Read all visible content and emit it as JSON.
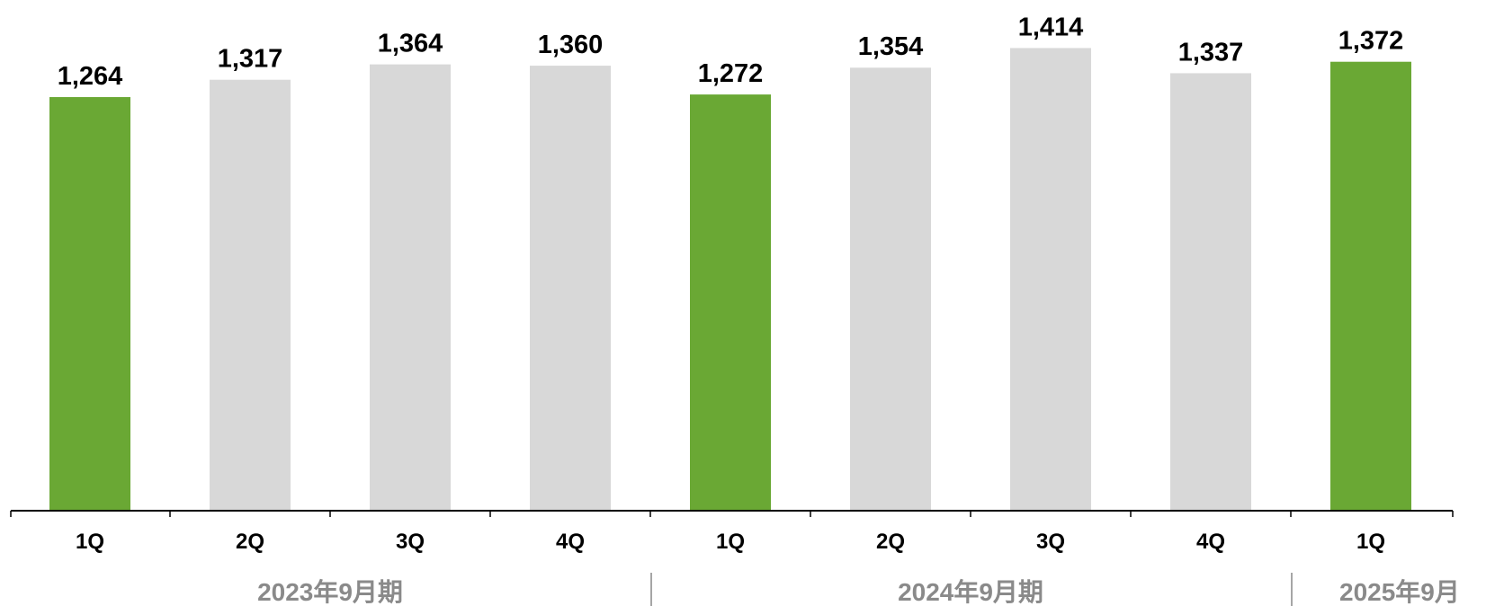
{
  "chart_data": {
    "type": "bar",
    "categories": [
      "1Q",
      "2Q",
      "3Q",
      "4Q",
      "1Q",
      "2Q",
      "3Q",
      "4Q",
      "1Q"
    ],
    "values": [
      1264,
      1317,
      1364,
      1360,
      1272,
      1354,
      1414,
      1337,
      1372
    ],
    "value_labels": [
      "1,264",
      "1,317",
      "1,364",
      "1,360",
      "1,272",
      "1,354",
      "1,414",
      "1,337",
      "1,372"
    ],
    "highlighted": [
      true,
      false,
      false,
      false,
      true,
      false,
      false,
      false,
      true
    ],
    "groups": [
      {
        "label": "2023年9月期",
        "count": 4
      },
      {
        "label": "2024年9月期",
        "count": 4
      },
      {
        "label": "2025年9月",
        "count": 1
      }
    ],
    "ylim": [
      0,
      1500
    ],
    "grid": false,
    "colors": {
      "highlight": "#6aa834",
      "default": "#d8d8d8",
      "axis": "#000000",
      "group_label": "#8a8a8a",
      "separator": "#a6a6a6"
    }
  }
}
